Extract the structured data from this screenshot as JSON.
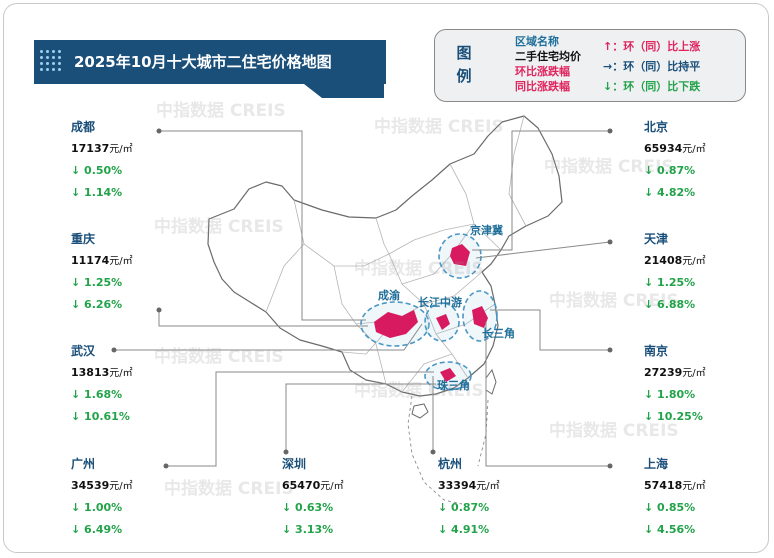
{
  "title": "2025年10月十大城市二住宅价格地图",
  "legend": {
    "head": [
      "图",
      "例"
    ],
    "items": [
      {
        "text": "区域名称",
        "color": "#1f6f9a"
      },
      {
        "text": "二手住宅均价",
        "color": "#111111"
      },
      {
        "text": "环比涨跌幅",
        "color": "#e0245e"
      },
      {
        "text": "同比涨跌幅",
        "color": "#e0245e"
      }
    ],
    "directions": [
      {
        "text": "↑：环（同）比上涨",
        "color": "#e0245e"
      },
      {
        "text": "→：环（同）比持平",
        "color": "#1a4f7a"
      },
      {
        "text": "↓：环（同）比下跌",
        "color": "#22a34a"
      }
    ]
  },
  "regions": [
    "京津冀",
    "成渝",
    "长江中游",
    "长三角",
    "珠三角"
  ],
  "unit": "元/㎡",
  "cities": [
    {
      "name": "成都",
      "price": "17137",
      "mom": "↓ 0.50%",
      "yoy": "↓ 1.14%"
    },
    {
      "name": "重庆",
      "price": "11174",
      "mom": "↓ 1.25%",
      "yoy": "↓ 6.26%"
    },
    {
      "name": "武汉",
      "price": "13813",
      "mom": "↓ 1.68%",
      "yoy": "↓ 10.61%"
    },
    {
      "name": "广州",
      "price": "34539",
      "mom": "↓ 1.00%",
      "yoy": "↓ 6.49%"
    },
    {
      "name": "深圳",
      "price": "65470",
      "mom": "↓ 0.63%",
      "yoy": "↓ 3.13%"
    },
    {
      "name": "杭州",
      "price": "33394",
      "mom": "↓ 0.87%",
      "yoy": "↓ 4.91%"
    },
    {
      "name": "北京",
      "price": "65934",
      "mom": "↓ 0.87%",
      "yoy": "↓ 4.82%"
    },
    {
      "name": "天津",
      "price": "21408",
      "mom": "↓ 1.25%",
      "yoy": "↓ 6.88%"
    },
    {
      "name": "南京",
      "price": "27239",
      "mom": "↓ 1.80%",
      "yoy": "↓ 10.25%"
    },
    {
      "name": "上海",
      "price": "57418",
      "mom": "↓ 0.85%",
      "yoy": "↓ 4.56%"
    }
  ],
  "watermark": "中指数据 CREIS",
  "colors": {
    "banner": "#1a4f7a",
    "region_fill": "#d81b60",
    "down": "#22a34a",
    "up": "#e0245e"
  }
}
